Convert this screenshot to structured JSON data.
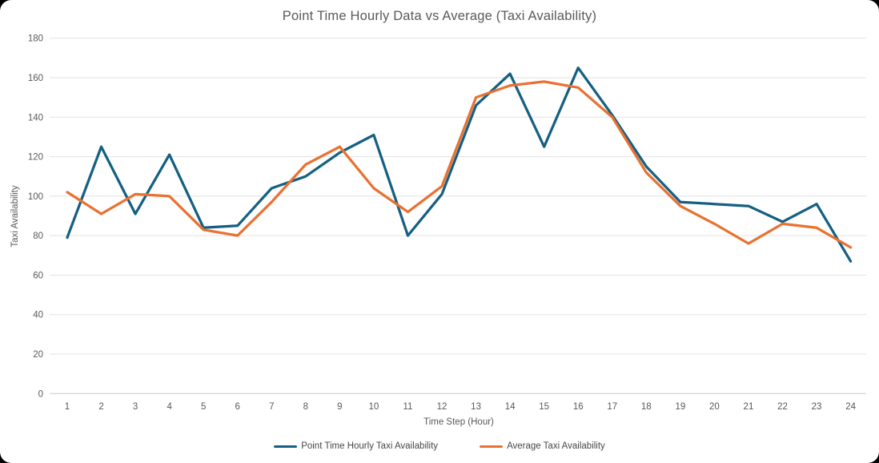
{
  "chart_data": {
    "type": "line",
    "title": "Point Time Hourly Data vs Average (Taxi Availability)",
    "xlabel": "Time Step (Hour)",
    "ylabel": "Taxi Availability",
    "x": [
      1,
      2,
      3,
      4,
      5,
      6,
      7,
      8,
      9,
      10,
      11,
      12,
      13,
      14,
      15,
      16,
      17,
      18,
      19,
      20,
      21,
      22,
      23,
      24
    ],
    "series": [
      {
        "name": "Point Time Hourly Taxi Availability",
        "color": "#156082",
        "values": [
          79,
          125,
          91,
          121,
          84,
          85,
          104,
          110,
          122,
          131,
          80,
          101,
          146,
          162,
          125,
          165,
          141,
          115,
          97,
          96,
          95,
          87,
          96,
          67
        ]
      },
      {
        "name": "Average Taxi Availability",
        "color": "#E97132",
        "values": [
          102,
          91,
          101,
          100,
          83,
          80,
          97,
          116,
          125,
          104,
          92,
          105,
          150,
          156,
          158,
          155,
          140,
          112,
          95,
          86,
          76,
          86,
          84,
          74
        ]
      }
    ],
    "ylim": [
      0,
      180
    ],
    "ytick_step": 20,
    "grid": "horizontal",
    "legend_position": "bottom"
  },
  "palette": {
    "gridline": "#e2e2e2",
    "zero_axis_line": "#c9c9c9",
    "tick_text": "#595959",
    "axis_title_text": "#595959",
    "title_text": "#595959",
    "card_background": "#ffffff",
    "page_background": "#000000"
  }
}
